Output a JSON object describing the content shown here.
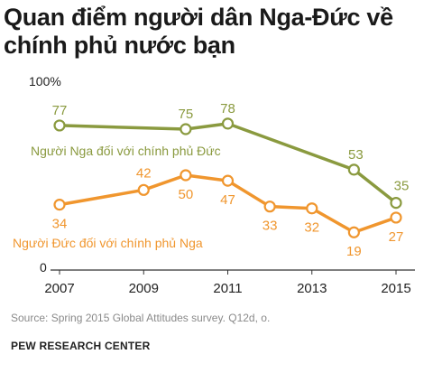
{
  "title": "Quan điểm người dân Nga-Đức về chính phủ nước bạn",
  "source": "Source: Spring 2015 Global Attitudes survey. Q12d, o.",
  "org": "PEW RESEARCH CENTER",
  "colors": {
    "russia": "#8a9a3f",
    "germany": "#f0962e",
    "axis": "#333333"
  },
  "chart_data": {
    "type": "line",
    "title": "Quan điểm người dân Nga-Đức về chính phủ nước bạn",
    "xlabel": "",
    "ylabel": "",
    "xlim": [
      2007,
      2015
    ],
    "ylim": [
      0,
      100
    ],
    "y_tick_labels": [
      {
        "value": 100,
        "label": "100%"
      },
      {
        "value": 0,
        "label": "0"
      }
    ],
    "x_tick_labels": [
      "2007",
      "2009",
      "2011",
      "2013",
      "2015"
    ],
    "x_ticks": [
      2007,
      2009,
      2011,
      2013,
      2015
    ],
    "grid": false,
    "series": [
      {
        "name": "Người Nga đối với chính phủ Đức",
        "color": "#8a9a3f",
        "points": [
          {
            "x": 2007,
            "y": 77
          },
          {
            "x": 2010,
            "y": 75
          },
          {
            "x": 2011,
            "y": 78
          },
          {
            "x": 2014,
            "y": 53
          },
          {
            "x": 2015,
            "y": 35
          }
        ]
      },
      {
        "name": "Người Đức đối với chính phủ Nga",
        "color": "#f0962e",
        "points": [
          {
            "x": 2007,
            "y": 34
          },
          {
            "x": 2009,
            "y": 42
          },
          {
            "x": 2010,
            "y": 50
          },
          {
            "x": 2011,
            "y": 47
          },
          {
            "x": 2012,
            "y": 33
          },
          {
            "x": 2013,
            "y": 32
          },
          {
            "x": 2014,
            "y": 19
          },
          {
            "x": 2015,
            "y": 27
          }
        ]
      }
    ]
  }
}
